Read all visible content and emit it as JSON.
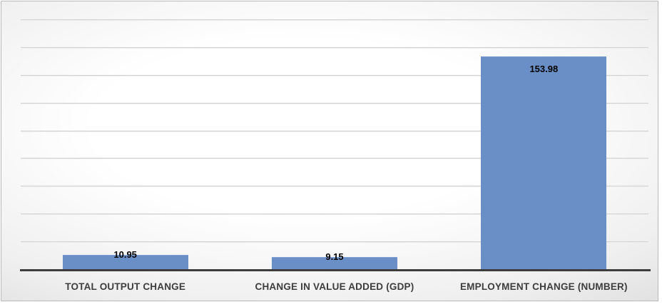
{
  "chart_data": {
    "type": "bar",
    "categories": [
      "TOTAL OUTPUT CHANGE",
      "CHANGE IN VALUE ADDED (GDP)",
      "EMPLOYMENT CHANGE (NUMBER)"
    ],
    "values": [
      10.95,
      9.15,
      153.98
    ],
    "data_labels": [
      "10.95",
      "9.15",
      "153.98"
    ],
    "title": "",
    "xlabel": "",
    "ylabel": "",
    "ylim": [
      0,
      180
    ],
    "gridline_step": 20,
    "grid": true,
    "legend": "none",
    "colors": {
      "bar_fill": "#698FC6",
      "bar_edge": "#7E9DD0",
      "gridline_dark": "#C6C6C6",
      "gridline_light": "#F9F9F9",
      "axis_line": "#3D3D3D",
      "data_label": "#000000",
      "category_label": "#3D3D3D",
      "frame_border": "#B9B9B9",
      "background_center": "#FFFFFF",
      "background_edge": "#C7C7C7"
    }
  }
}
